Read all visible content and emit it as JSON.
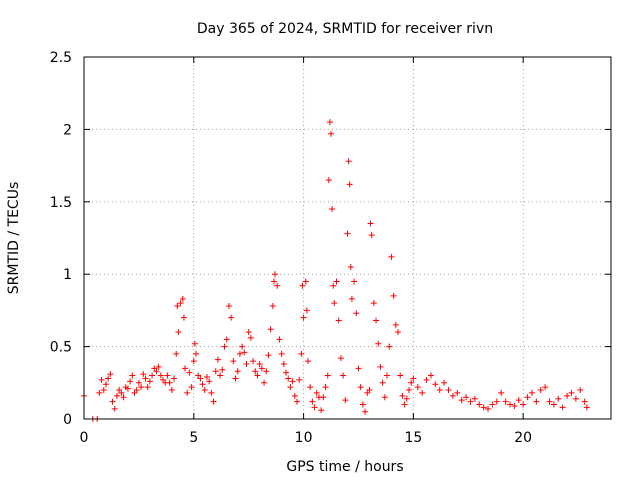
{
  "chart_data": {
    "type": "scatter",
    "title": "Day 365 of 2024, SRMTID for receiver rivn",
    "xlabel": "GPS time / hours",
    "ylabel": "SRMTID / TECUs",
    "xlim": [
      0,
      24
    ],
    "ylim": [
      0,
      2.5
    ],
    "x_ticks": [
      "0",
      "5",
      "10",
      "15",
      "20"
    ],
    "y_ticks": [
      "0",
      "0.5",
      "1",
      "1.5",
      "2",
      "2.5"
    ],
    "grid": true,
    "marker": "+",
    "color": "#ff0000",
    "series": [
      {
        "name": "SRMTID",
        "points": [
          [
            0.0,
            0.16
          ],
          [
            0.4,
            0.0
          ],
          [
            0.6,
            0.0
          ],
          [
            0.7,
            0.18
          ],
          [
            0.8,
            0.27
          ],
          [
            0.9,
            0.2
          ],
          [
            1.0,
            0.24
          ],
          [
            1.1,
            0.28
          ],
          [
            1.2,
            0.31
          ],
          [
            1.3,
            0.12
          ],
          [
            1.4,
            0.07
          ],
          [
            1.5,
            0.16
          ],
          [
            1.6,
            0.2
          ],
          [
            1.7,
            0.18
          ],
          [
            1.8,
            0.15
          ],
          [
            1.9,
            0.22
          ],
          [
            2.0,
            0.21
          ],
          [
            2.1,
            0.26
          ],
          [
            2.2,
            0.3
          ],
          [
            2.3,
            0.18
          ],
          [
            2.4,
            0.2
          ],
          [
            2.5,
            0.25
          ],
          [
            2.6,
            0.22
          ],
          [
            2.7,
            0.31
          ],
          [
            2.8,
            0.28
          ],
          [
            2.9,
            0.22
          ],
          [
            3.0,
            0.26
          ],
          [
            3.1,
            0.3
          ],
          [
            3.2,
            0.35
          ],
          [
            3.3,
            0.33
          ],
          [
            3.4,
            0.36
          ],
          [
            3.5,
            0.3
          ],
          [
            3.6,
            0.27
          ],
          [
            3.7,
            0.25
          ],
          [
            3.8,
            0.3
          ],
          [
            3.9,
            0.25
          ],
          [
            4.0,
            0.2
          ],
          [
            4.1,
            0.28
          ],
          [
            4.2,
            0.45
          ],
          [
            4.25,
            0.78
          ],
          [
            4.3,
            0.6
          ],
          [
            4.4,
            0.8
          ],
          [
            4.5,
            0.83
          ],
          [
            4.55,
            0.7
          ],
          [
            4.6,
            0.35
          ],
          [
            4.7,
            0.18
          ],
          [
            4.8,
            0.32
          ],
          [
            4.9,
            0.22
          ],
          [
            5.0,
            0.4
          ],
          [
            5.05,
            0.52
          ],
          [
            5.1,
            0.45
          ],
          [
            5.2,
            0.3
          ],
          [
            5.3,
            0.28
          ],
          [
            5.4,
            0.24
          ],
          [
            5.5,
            0.2
          ],
          [
            5.6,
            0.29
          ],
          [
            5.7,
            0.26
          ],
          [
            5.8,
            0.18
          ],
          [
            5.9,
            0.12
          ],
          [
            6.0,
            0.33
          ],
          [
            6.1,
            0.41
          ],
          [
            6.2,
            0.3
          ],
          [
            6.3,
            0.34
          ],
          [
            6.4,
            0.5
          ],
          [
            6.5,
            0.55
          ],
          [
            6.6,
            0.78
          ],
          [
            6.7,
            0.7
          ],
          [
            6.8,
            0.4
          ],
          [
            6.9,
            0.28
          ],
          [
            7.0,
            0.33
          ],
          [
            7.1,
            0.45
          ],
          [
            7.2,
            0.5
          ],
          [
            7.3,
            0.46
          ],
          [
            7.4,
            0.38
          ],
          [
            7.5,
            0.6
          ],
          [
            7.6,
            0.56
          ],
          [
            7.7,
            0.4
          ],
          [
            7.8,
            0.33
          ],
          [
            7.9,
            0.3
          ],
          [
            8.0,
            0.38
          ],
          [
            8.1,
            0.35
          ],
          [
            8.2,
            0.25
          ],
          [
            8.3,
            0.33
          ],
          [
            8.4,
            0.44
          ],
          [
            8.5,
            0.62
          ],
          [
            8.6,
            0.78
          ],
          [
            8.65,
            0.95
          ],
          [
            8.7,
            1.0
          ],
          [
            8.8,
            0.92
          ],
          [
            8.9,
            0.55
          ],
          [
            9.0,
            0.45
          ],
          [
            9.1,
            0.38
          ],
          [
            9.2,
            0.32
          ],
          [
            9.3,
            0.28
          ],
          [
            9.4,
            0.22
          ],
          [
            9.5,
            0.26
          ],
          [
            9.6,
            0.16
          ],
          [
            9.7,
            0.12
          ],
          [
            9.8,
            0.27
          ],
          [
            9.9,
            0.45
          ],
          [
            9.95,
            0.92
          ],
          [
            10.0,
            0.7
          ],
          [
            10.1,
            0.95
          ],
          [
            10.15,
            0.75
          ],
          [
            10.2,
            0.4
          ],
          [
            10.3,
            0.22
          ],
          [
            10.4,
            0.12
          ],
          [
            10.5,
            0.08
          ],
          [
            10.6,
            0.18
          ],
          [
            10.7,
            0.15
          ],
          [
            10.8,
            0.06
          ],
          [
            10.9,
            0.15
          ],
          [
            11.0,
            0.22
          ],
          [
            11.1,
            0.3
          ],
          [
            11.15,
            1.65
          ],
          [
            11.2,
            2.05
          ],
          [
            11.25,
            1.97
          ],
          [
            11.3,
            1.45
          ],
          [
            11.35,
            0.92
          ],
          [
            11.4,
            0.8
          ],
          [
            11.5,
            0.95
          ],
          [
            11.6,
            0.68
          ],
          [
            11.7,
            0.42
          ],
          [
            11.8,
            0.3
          ],
          [
            11.9,
            0.13
          ],
          [
            12.0,
            1.28
          ],
          [
            12.05,
            1.78
          ],
          [
            12.1,
            1.62
          ],
          [
            12.15,
            1.05
          ],
          [
            12.2,
            0.83
          ],
          [
            12.3,
            0.95
          ],
          [
            12.4,
            0.73
          ],
          [
            12.5,
            0.35
          ],
          [
            12.6,
            0.22
          ],
          [
            12.7,
            0.1
          ],
          [
            12.8,
            0.05
          ],
          [
            12.9,
            0.18
          ],
          [
            13.0,
            0.2
          ],
          [
            13.05,
            1.35
          ],
          [
            13.1,
            1.27
          ],
          [
            13.2,
            0.8
          ],
          [
            13.3,
            0.68
          ],
          [
            13.4,
            0.52
          ],
          [
            13.5,
            0.36
          ],
          [
            13.6,
            0.25
          ],
          [
            13.7,
            0.15
          ],
          [
            13.8,
            0.3
          ],
          [
            13.9,
            0.5
          ],
          [
            14.0,
            1.12
          ],
          [
            14.1,
            0.85
          ],
          [
            14.2,
            0.65
          ],
          [
            14.3,
            0.6
          ],
          [
            14.4,
            0.3
          ],
          [
            14.5,
            0.16
          ],
          [
            14.6,
            0.1
          ],
          [
            14.7,
            0.14
          ],
          [
            14.8,
            0.2
          ],
          [
            14.9,
            0.25
          ],
          [
            15.0,
            0.28
          ],
          [
            15.2,
            0.22
          ],
          [
            15.4,
            0.18
          ],
          [
            15.6,
            0.27
          ],
          [
            15.8,
            0.3
          ],
          [
            16.0,
            0.24
          ],
          [
            16.2,
            0.2
          ],
          [
            16.4,
            0.25
          ],
          [
            16.6,
            0.2
          ],
          [
            16.8,
            0.16
          ],
          [
            17.0,
            0.18
          ],
          [
            17.2,
            0.13
          ],
          [
            17.4,
            0.15
          ],
          [
            17.6,
            0.12
          ],
          [
            17.8,
            0.14
          ],
          [
            18.0,
            0.1
          ],
          [
            18.2,
            0.08
          ],
          [
            18.4,
            0.07
          ],
          [
            18.6,
            0.1
          ],
          [
            18.8,
            0.12
          ],
          [
            19.0,
            0.18
          ],
          [
            19.2,
            0.12
          ],
          [
            19.4,
            0.1
          ],
          [
            19.6,
            0.09
          ],
          [
            19.8,
            0.13
          ],
          [
            20.0,
            0.1
          ],
          [
            20.2,
            0.15
          ],
          [
            20.4,
            0.18
          ],
          [
            20.6,
            0.12
          ],
          [
            20.8,
            0.2
          ],
          [
            21.0,
            0.22
          ],
          [
            21.2,
            0.12
          ],
          [
            21.4,
            0.1
          ],
          [
            21.6,
            0.14
          ],
          [
            21.8,
            0.08
          ],
          [
            22.0,
            0.16
          ],
          [
            22.2,
            0.18
          ],
          [
            22.4,
            0.14
          ],
          [
            22.6,
            0.2
          ],
          [
            22.8,
            0.12
          ],
          [
            22.9,
            0.08
          ]
        ]
      }
    ]
  }
}
